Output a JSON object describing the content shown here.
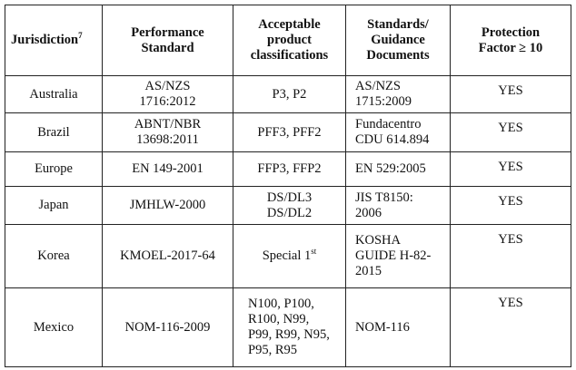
{
  "table": {
    "header": [
      [
        {
          "text": "Jurisdiction",
          "sup": "7"
        }
      ],
      [
        "Performance",
        "Standard"
      ],
      [
        "Acceptable",
        "product",
        "classifications"
      ],
      [
        "Standards/",
        "Guidance",
        "Documents"
      ],
      [
        "Protection",
        "Factor ≥ 10"
      ]
    ],
    "rows": [
      [
        [
          "Australia"
        ],
        [
          "AS/NZS",
          "1716:2012"
        ],
        [
          "P3, P2"
        ],
        [
          "AS/NZS",
          "1715:2009"
        ],
        [
          "YES"
        ]
      ],
      [
        [
          "Brazil"
        ],
        [
          "ABNT/NBR",
          "13698:2011"
        ],
        [
          "PFF3, PFF2"
        ],
        [
          "Fundacentro",
          "CDU 614.894"
        ],
        [
          "YES"
        ]
      ],
      [
        [
          "Europe"
        ],
        [
          "EN 149-2001"
        ],
        [
          "FFP3, FFP2"
        ],
        [
          "EN 529:2005"
        ],
        [
          "YES"
        ]
      ],
      [
        [
          "Japan"
        ],
        [
          "JMHLW-2000"
        ],
        [
          "DS/DL3",
          "DS/DL2"
        ],
        [
          "JIS T8150:",
          "2006"
        ],
        [
          "YES"
        ]
      ],
      [
        [
          "Korea"
        ],
        [
          "KMOEL-2017-64"
        ],
        [
          {
            "text": "Special 1",
            "sup": "st"
          }
        ],
        [
          "KOSHA",
          "GUIDE H-82-",
          "2015"
        ],
        [
          "YES"
        ]
      ],
      [
        [
          "Mexico"
        ],
        [
          "NOM-116-2009"
        ],
        [
          "N100, P100,",
          "R100, N99,",
          "P99, R99, N95,",
          "P95, R95"
        ],
        [
          "NOM-116"
        ],
        [
          "YES"
        ]
      ]
    ]
  }
}
